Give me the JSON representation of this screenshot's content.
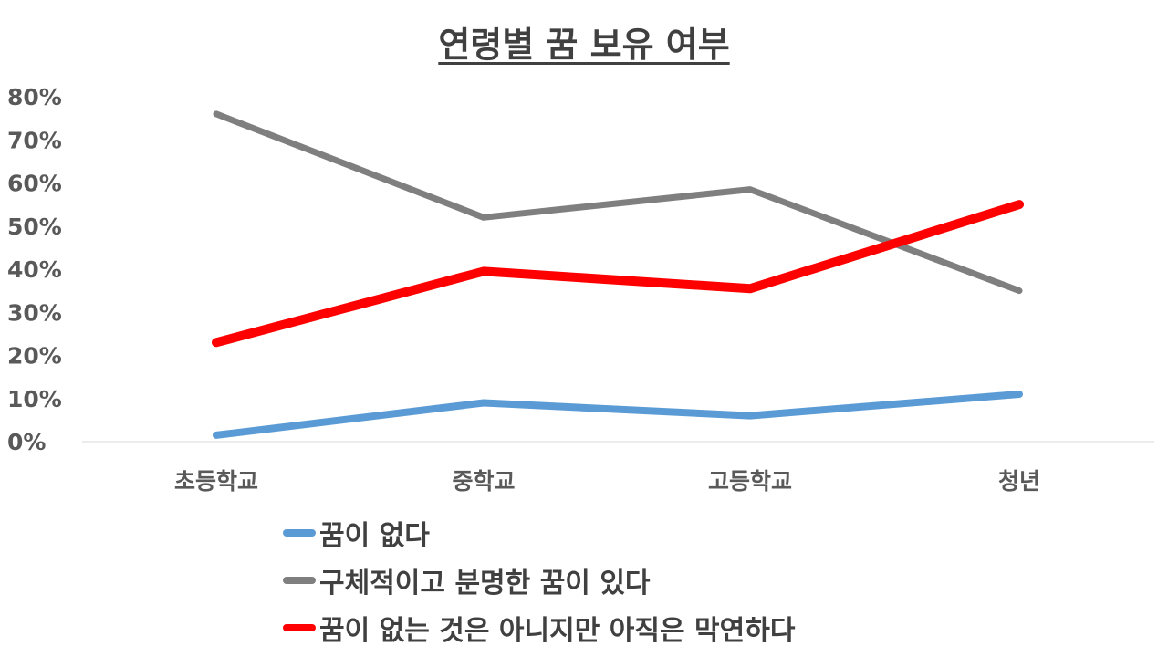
{
  "chart_data": {
    "type": "line",
    "title": "연령별 꿈 보유 여부",
    "categories": [
      "초등학교",
      "중학교",
      "고등학교",
      "청년"
    ],
    "y_ticks": [
      "0%",
      "10%",
      "20%",
      "30%",
      "40%",
      "50%",
      "60%",
      "70%",
      "80%"
    ],
    "ylim": [
      0,
      80
    ],
    "y_unit": "%",
    "grid": false,
    "legend_position": "bottom",
    "series": [
      {
        "name": "꿈이 없다",
        "color": "#5B9BD5",
        "values": [
          1.5,
          9,
          6,
          11
        ]
      },
      {
        "name": "구체적이고 분명한 꿈이 있다",
        "color": "#7F7F7F",
        "values": [
          76,
          52,
          58.5,
          35
        ]
      },
      {
        "name": "꿈이 없는 것은 아니지만 아직은 막연하다",
        "color": "#FF0000",
        "values": [
          23,
          39.5,
          35.5,
          55
        ]
      }
    ]
  }
}
